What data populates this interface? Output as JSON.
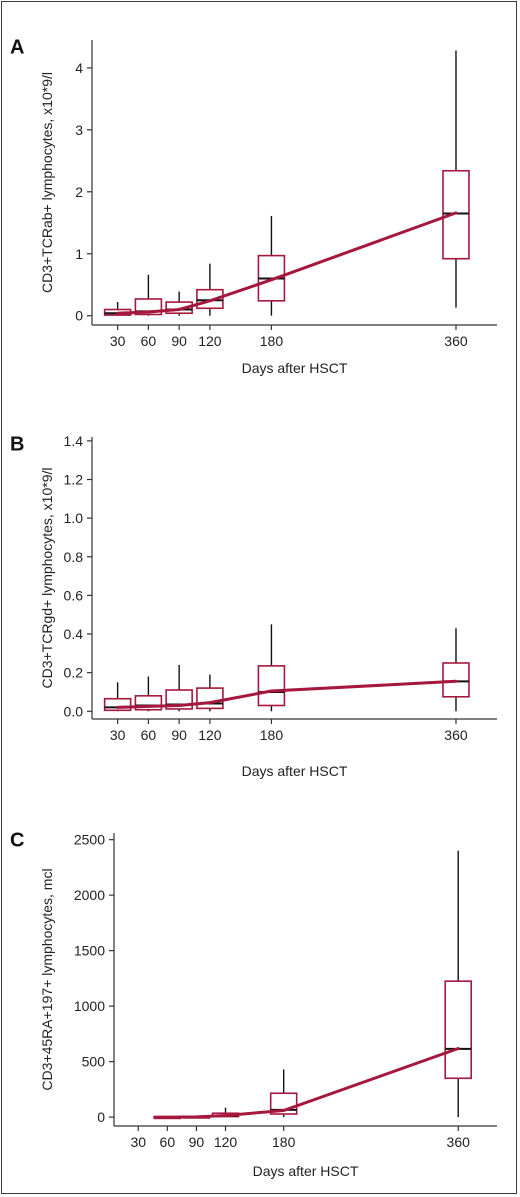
{
  "colors": {
    "series": "#a6173d",
    "median": "#111111",
    "whisker": "#111111",
    "axis": "#333333"
  },
  "chart_data": [
    {
      "type": "box",
      "panel_label": "A",
      "xlabel": "Days after HSCT",
      "ylabel": "CD3+TCRab+ lymphocytes, x10*9/l",
      "xlim": [
        5,
        400
      ],
      "ylim": [
        -0.15,
        4.45
      ],
      "x_ticks": [
        30,
        60,
        90,
        120,
        180,
        360
      ],
      "y_ticks": [
        0,
        1,
        2,
        3,
        4
      ],
      "y_tick_labels": [
        "0",
        "1",
        "2",
        "3",
        "4"
      ],
      "boxes": [
        {
          "x": 30,
          "whisker_low": 0.0,
          "q1": 0.01,
          "median": 0.04,
          "q3": 0.1,
          "whisker_high": 0.22
        },
        {
          "x": 60,
          "whisker_low": 0.0,
          "q1": 0.02,
          "median": 0.07,
          "q3": 0.27,
          "whisker_high": 0.66
        },
        {
          "x": 90,
          "whisker_low": 0.0,
          "q1": 0.04,
          "median": 0.1,
          "q3": 0.22,
          "whisker_high": 0.39
        },
        {
          "x": 120,
          "whisker_low": 0.0,
          "q1": 0.12,
          "median": 0.25,
          "q3": 0.42,
          "whisker_high": 0.84
        },
        {
          "x": 180,
          "whisker_low": 0.0,
          "q1": 0.24,
          "median": 0.6,
          "q3": 0.97,
          "whisker_high": 1.61
        },
        {
          "x": 360,
          "whisker_low": 0.13,
          "q1": 0.92,
          "median": 1.65,
          "q3": 2.34,
          "whisker_high": 4.28
        }
      ],
      "trend": [
        [
          30,
          0.04
        ],
        [
          60,
          0.06
        ],
        [
          90,
          0.1
        ],
        [
          120,
          0.24
        ],
        [
          180,
          0.58
        ],
        [
          360,
          1.66
        ]
      ]
    },
    {
      "type": "box",
      "panel_label": "B",
      "xlabel": "Days after HSCT",
      "ylabel": "CD3+TCRgd+ lymphocytes, x10*9/l",
      "xlim": [
        5,
        400
      ],
      "ylim": [
        -0.04,
        1.42
      ],
      "x_ticks": [
        30,
        60,
        90,
        120,
        180,
        360
      ],
      "y_ticks": [
        0,
        0.2,
        0.4,
        0.6,
        0.8,
        1.0,
        1.2,
        1.4
      ],
      "y_tick_labels": [
        "0.0",
        "0.2",
        "0.4",
        "0.6",
        "0.8",
        "1.0",
        "1.2",
        "1.4"
      ],
      "boxes": [
        {
          "x": 30,
          "whisker_low": 0.0,
          "q1": 0.005,
          "median": 0.02,
          "q3": 0.065,
          "whisker_high": 0.15
        },
        {
          "x": 60,
          "whisker_low": 0.0,
          "q1": 0.008,
          "median": 0.03,
          "q3": 0.08,
          "whisker_high": 0.18
        },
        {
          "x": 90,
          "whisker_low": 0.0,
          "q1": 0.012,
          "median": 0.035,
          "q3": 0.11,
          "whisker_high": 0.24
        },
        {
          "x": 120,
          "whisker_low": 0.0,
          "q1": 0.015,
          "median": 0.04,
          "q3": 0.12,
          "whisker_high": 0.19
        },
        {
          "x": 180,
          "whisker_low": 0.0,
          "q1": 0.03,
          "median": 0.1,
          "q3": 0.235,
          "whisker_high": 0.45
        },
        {
          "x": 360,
          "whisker_low": 0.0,
          "q1": 0.075,
          "median": 0.155,
          "q3": 0.25,
          "whisker_high": 0.43
        }
      ],
      "trend": [
        [
          30,
          0.02
        ],
        [
          60,
          0.025
        ],
        [
          90,
          0.03
        ],
        [
          120,
          0.045
        ],
        [
          180,
          0.105
        ],
        [
          360,
          0.155
        ]
      ]
    },
    {
      "type": "box",
      "panel_label": "C",
      "xlabel": "Days after HSCT",
      "ylabel": "CD3+45RA+197+ lymphocytes, mcl",
      "xlim": [
        5,
        400
      ],
      "ylim": [
        -80,
        2560
      ],
      "x_ticks": [
        30,
        60,
        90,
        120,
        180,
        360
      ],
      "y_ticks": [
        0,
        500,
        1000,
        1500,
        2000,
        2500
      ],
      "y_tick_labels": [
        "0",
        "500",
        "1000",
        "1500",
        "2000",
        "2500"
      ],
      "boxes": [
        {
          "x": 60,
          "whisker_low": 0,
          "q1": 0,
          "median": 0,
          "q3": 2,
          "whisker_high": 5
        },
        {
          "x": 90,
          "whisker_low": 0,
          "q1": 1,
          "median": 2,
          "q3": 6,
          "whisker_high": 12
        },
        {
          "x": 120,
          "whisker_low": 0,
          "q1": 5,
          "median": 14,
          "q3": 35,
          "whisker_high": 85
        },
        {
          "x": 180,
          "whisker_low": 0,
          "q1": 28,
          "median": 65,
          "q3": 215,
          "whisker_high": 430
        },
        {
          "x": 360,
          "whisker_low": 0,
          "q1": 350,
          "median": 615,
          "q3": 1225,
          "whisker_high": 2400
        }
      ],
      "trend": [
        [
          47,
          0
        ],
        [
          60,
          0
        ],
        [
          90,
          2
        ],
        [
          120,
          15
        ],
        [
          180,
          60
        ],
        [
          360,
          618
        ]
      ]
    }
  ]
}
